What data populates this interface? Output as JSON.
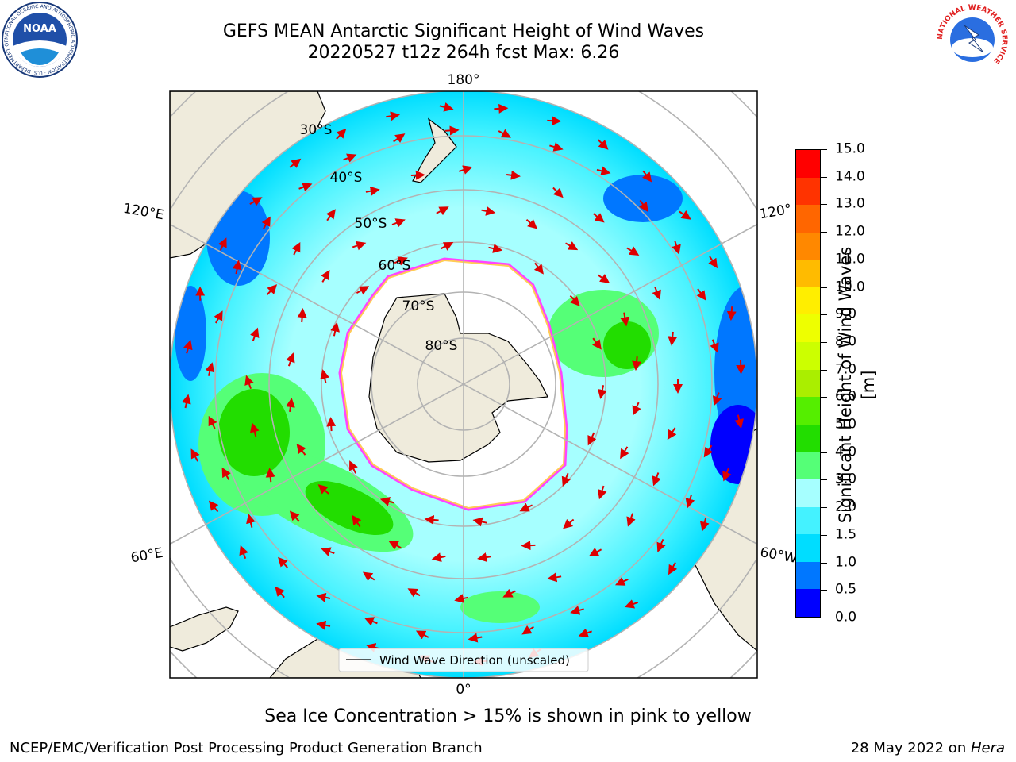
{
  "header": {
    "title_line1": "GEFS MEAN Antarctic Significant Height of Wind Waves",
    "title_line2": "20220527 t12z 264h fcst   Max: 6.26"
  },
  "map": {
    "projection": "south polar stereographic",
    "longitude_labels": {
      "top": "180°",
      "bottom": "0°",
      "upper_left": "120°E",
      "upper_right": "120°",
      "lower_left": "60°E",
      "lower_right": "60°W"
    },
    "latitude_labels": [
      "30°S",
      "40°S",
      "50°S",
      "60°S",
      "70°S",
      "80°S"
    ],
    "legend_label": "Wind Wave Direction (unscaled)"
  },
  "colorbar": {
    "title": "Significant Height of Wind Waves [m]",
    "tick_labels": [
      "0.0",
      "0.5",
      "1.0",
      "1.5",
      "2.0",
      "3.0",
      "4.0",
      "5.0",
      "6.0",
      "7.0",
      "8.0",
      "9.0",
      "10.0",
      "11.0",
      "12.0",
      "13.0",
      "14.0",
      "15.0"
    ],
    "colors": [
      "#0000ff",
      "#0077ff",
      "#00ddff",
      "#44f2ff",
      "#a6ffff",
      "#55ff77",
      "#22dd00",
      "#55ee00",
      "#aaee00",
      "#ccff00",
      "#eeff00",
      "#ffee00",
      "#ffbb00",
      "#ff8800",
      "#ff6600",
      "#ff3300",
      "#ff0000"
    ]
  },
  "notes": {
    "sea_ice": "Sea Ice Concentration > 15% is shown in pink to yellow"
  },
  "footer": {
    "left": "NCEP/EMC/Verification Post Processing Product Generation Branch",
    "date": "28 May 2022 on ",
    "host": "Hera"
  },
  "logos": {
    "noaa": "NOAA",
    "noaa_ring": "NATIONAL OCEANIC AND ATMOSPHERIC ADMINISTRATION · U.S. DEPARTMENT OF COMMERCE",
    "nws_ring": "NATIONAL WEATHER SERVICE"
  }
}
